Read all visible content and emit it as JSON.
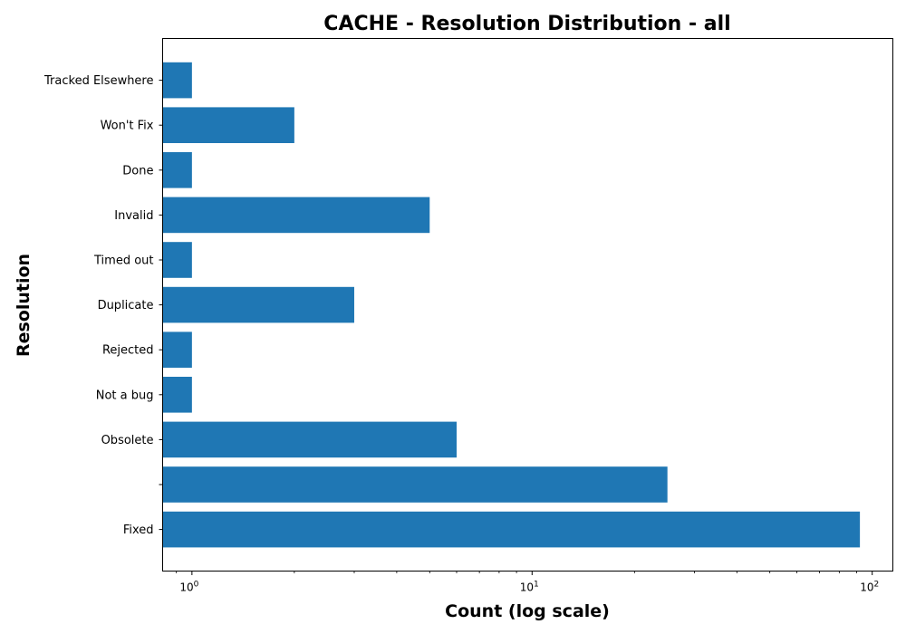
{
  "chart_data": {
    "type": "bar",
    "orientation": "horizontal",
    "title": "CACHE - Resolution Distribution - all",
    "xlabel": "Count (log scale)",
    "ylabel": "Resolution",
    "x_scale": "log",
    "xlim": [
      0.82,
      115
    ],
    "x_ticks": [
      {
        "base": "10",
        "exp": "0",
        "value": 1
      },
      {
        "base": "10",
        "exp": "1",
        "value": 10
      },
      {
        "base": "10",
        "exp": "2",
        "value": 100
      }
    ],
    "categories": [
      "Fixed",
      "",
      "Obsolete",
      "Not a bug",
      "Rejected",
      "Duplicate",
      "Timed out",
      "Invalid",
      "Done",
      "Won't Fix",
      "Tracked Elsewhere"
    ],
    "values": [
      92,
      25,
      6,
      1,
      1,
      3,
      1,
      5,
      1,
      2,
      1
    ],
    "bar_color": "#1f77b4",
    "grid": false
  }
}
